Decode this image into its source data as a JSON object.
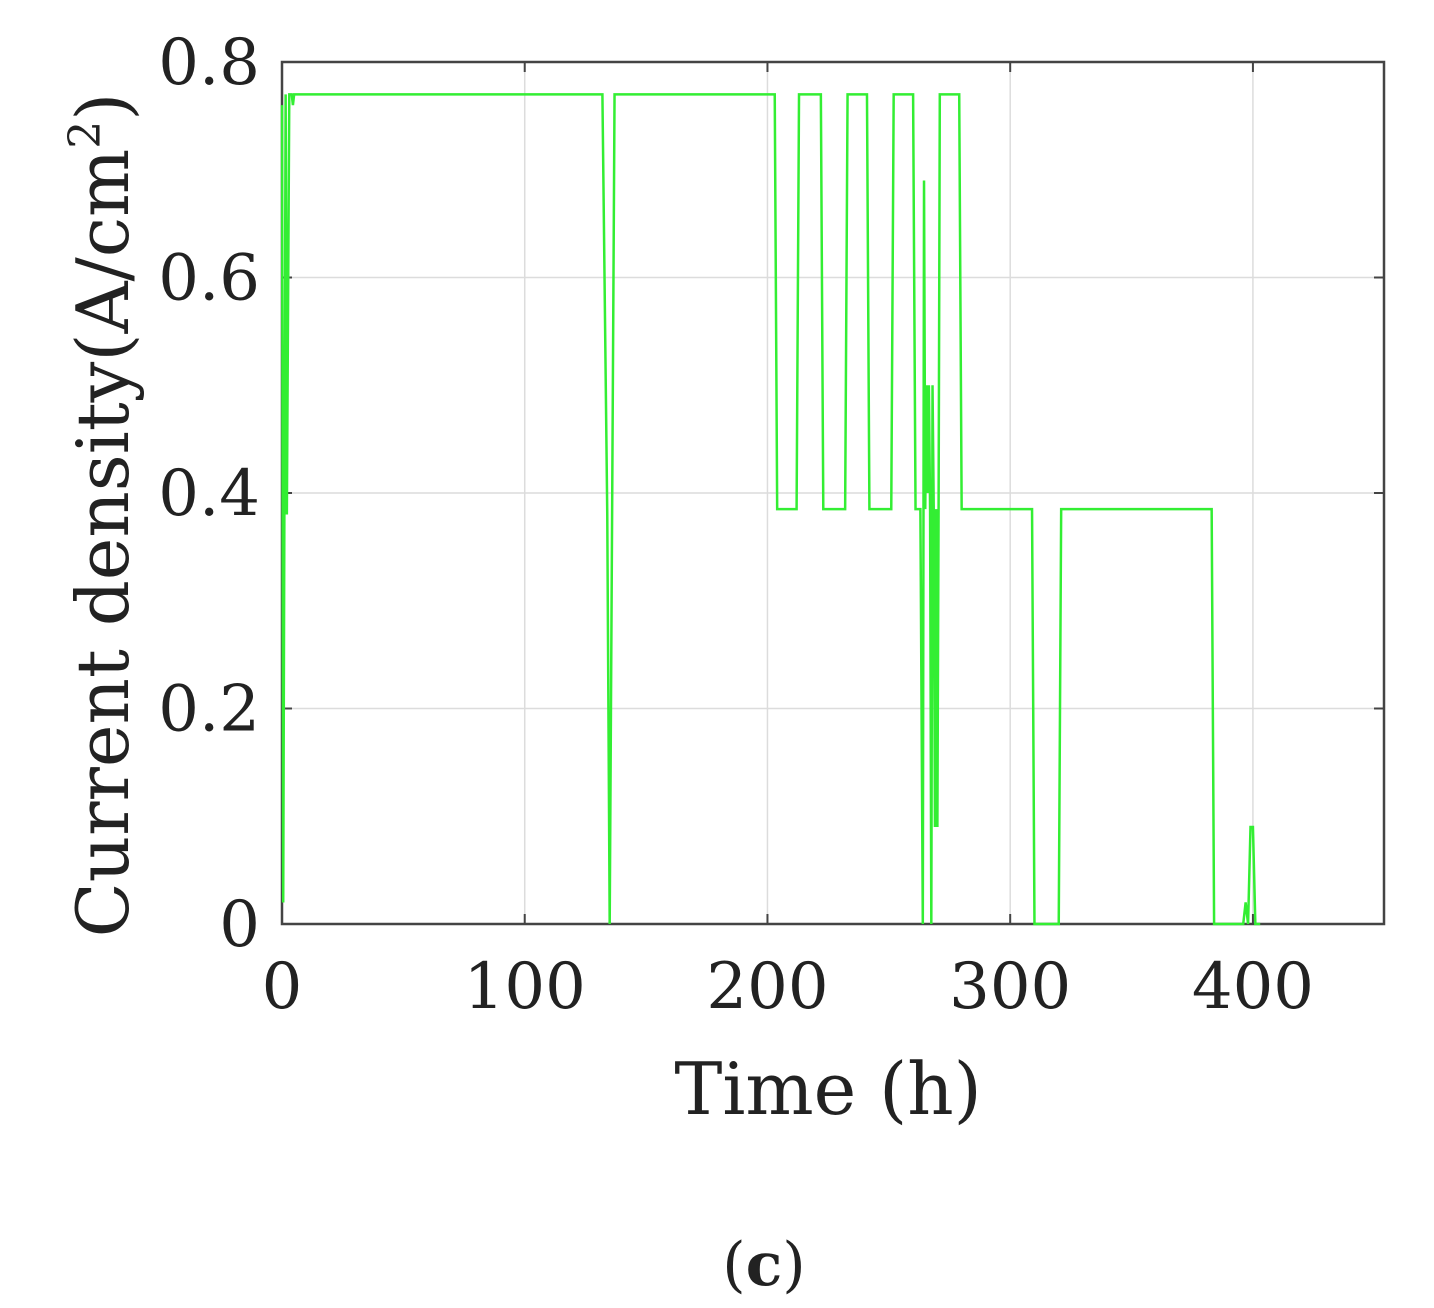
{
  "chart_data": {
    "type": "line",
    "xlabel": "Time (h)",
    "ylabel_main": "Current density(A/cm",
    "ylabel_sup": "2",
    "ylabel_close": ")",
    "xlim": [
      0,
      454
    ],
    "ylim": [
      0,
      0.8
    ],
    "xticks": [
      0,
      100,
      200,
      300,
      400
    ],
    "xtick_labels": [
      "0",
      "100",
      "200",
      "300",
      "400"
    ],
    "yticks": [
      0,
      0.2,
      0.4,
      0.6,
      0.8
    ],
    "ytick_labels": [
      "0",
      "0.2",
      "0.4",
      "0.6",
      "0.8"
    ],
    "grid": true,
    "line_color": "#33ee33",
    "series": [
      {
        "x": [
          0,
          0.5,
          1,
          1.5,
          2,
          3,
          4,
          4.5,
          5,
          132,
          134,
          135,
          136,
          137,
          138,
          203,
          204,
          212,
          213,
          222,
          223,
          232,
          233,
          241,
          242,
          251,
          252,
          260,
          261,
          263,
          264,
          264.5,
          265,
          265.5,
          266,
          266.5,
          267,
          267.5,
          268,
          268.5,
          269,
          269.5,
          270,
          270.5,
          271,
          279,
          280,
          309,
          310,
          320,
          321,
          383,
          384,
          396,
          397,
          398,
          399,
          400,
          401,
          402,
          403
        ],
        "y": [
          0.76,
          0.02,
          0.4,
          0.77,
          0.38,
          0.77,
          0.77,
          0.76,
          0.77,
          0.77,
          0.38,
          0,
          0.38,
          0.77,
          0.77,
          0.77,
          0.385,
          0.385,
          0.77,
          0.77,
          0.385,
          0.385,
          0.77,
          0.77,
          0.385,
          0.385,
          0.77,
          0.77,
          0.385,
          0.385,
          0,
          0.69,
          0.385,
          0.5,
          0.4,
          0.5,
          0.385,
          0,
          0.5,
          0.385,
          0.09,
          0.385,
          0.09,
          0.385,
          0.77,
          0.77,
          0.385,
          0.385,
          0,
          0,
          0.385,
          0.385,
          0,
          0,
          0.02,
          0,
          0.09,
          0.09,
          0,
          0,
          0
        ]
      }
    ]
  },
  "panel_label": {
    "open": "(",
    "letter": "c",
    "close": ")"
  }
}
